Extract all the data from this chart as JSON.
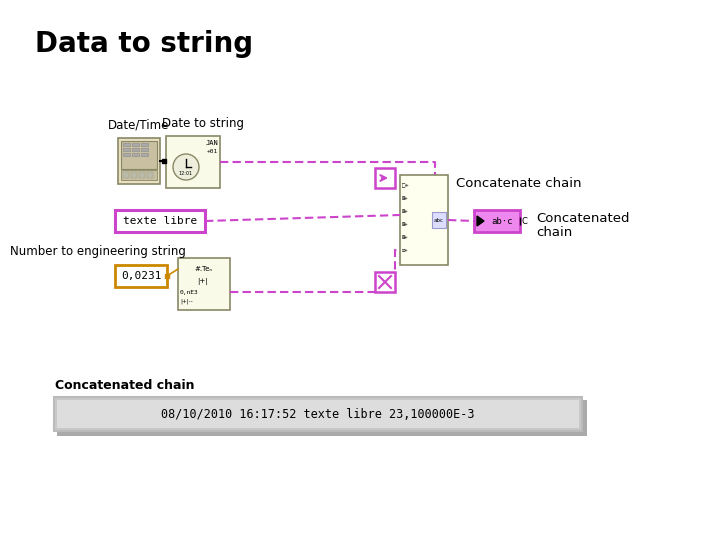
{
  "title": "Data to string",
  "title_fontsize": 20,
  "title_fontweight": "bold",
  "bg_color": "#ffffff",
  "label_datetime": "Date/Time",
  "label_datetostring": "Date to string",
  "label_concatenate": "Concatenate chain",
  "label_concatenated1": "Concatenated",
  "label_concatenated2": "chain",
  "label_number": "Number to engineering string",
  "label_concat_chain2": "Concatenated chain",
  "label_output": "08/10/2010 16:17:52 texte libre 23,100000E-3",
  "label_textelibre": "texte libre",
  "label_number_val": "0,0231",
  "magenta": "#CC44CC",
  "magenta_dark": "#990099",
  "tan_block": "#EEEECC",
  "tan_border": "#888866",
  "orange_border": "#CC8800",
  "light_gray": "#C8C8C8",
  "mid_gray": "#AAAAAA",
  "dark_gray": "#666666",
  "pink_block": "#EE88EE",
  "cream": "#FAFAE8"
}
